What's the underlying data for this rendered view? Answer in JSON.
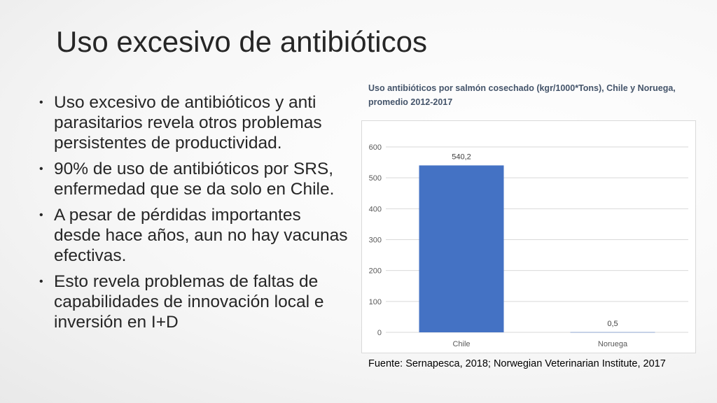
{
  "slide": {
    "title": "Uso excesivo de antibióticos",
    "bullets": [
      "Uso excesivo de antibióticos y anti parasitarios revela otros problemas persistentes de productividad.",
      "90% de uso de antibióticos por SRS, enfermedad que se da solo en Chile.",
      "A pesar de pérdidas importantes desde hace años, aun no hay vacunas efectivas.",
      "Esto revela problemas de faltas de capabilidades de innovación local e inversión en I+D"
    ],
    "bullet_glyph": "•",
    "source": "Fuente: Sernapesca, 2018; Norwegian Veterinarian Institute, 2017"
  },
  "chart_data": {
    "type": "bar",
    "title": "Uso antibióticos por salmón cosechado (kgr/1000*Tons), Chile y Noruega, promedio 2012-2017",
    "categories": [
      "Chile",
      "Noruega"
    ],
    "values": [
      540.2,
      0.5
    ],
    "data_labels": [
      "540,2",
      "0,5"
    ],
    "yticks": [
      0,
      100,
      200,
      300,
      400,
      500,
      600
    ],
    "ylim": [
      0,
      600
    ],
    "grid": true,
    "legend": "none",
    "bar_color": "#4472c4",
    "xlabel": "",
    "ylabel": ""
  }
}
